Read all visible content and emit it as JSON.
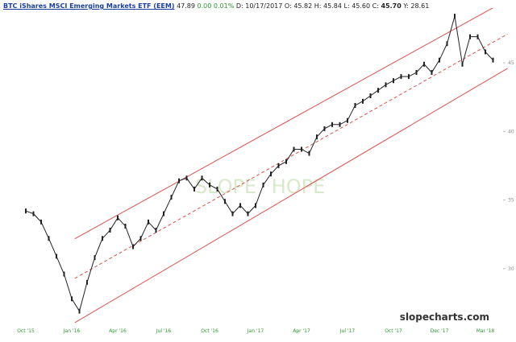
{
  "chart_data": {
    "type": "line",
    "header": {
      "title": "BTC iShares MSCI Emerging Markets ETF (EEM)",
      "last": "47.89",
      "change": "0.00",
      "change_pct": "0.01%",
      "quote": [
        {
          "label": "D:",
          "value": "10/17/2017"
        },
        {
          "label": "O:",
          "value": "45.82"
        },
        {
          "label": "H:",
          "value": "45.84"
        },
        {
          "label": "L:",
          "value": "45.60"
        },
        {
          "label": "C:",
          "value": "45.70"
        },
        {
          "label": "Y:",
          "value": "28.61"
        }
      ]
    },
    "watermark": [
      "SLOPE",
      "HOPE"
    ],
    "source": "slopecharts.com",
    "categories": [
      "Oct '15",
      null,
      null,
      null,
      null,
      null,
      "Jan '16",
      null,
      null,
      null,
      null,
      null,
      "Apr '16",
      null,
      null,
      null,
      null,
      null,
      "Jul '16",
      null,
      null,
      null,
      null,
      null,
      "Oct '16",
      null,
      null,
      null,
      null,
      null,
      "Jan '17",
      null,
      null,
      null,
      null,
      null,
      "Apr '17",
      null,
      null,
      null,
      null,
      null,
      "Jul '17",
      null,
      null,
      null,
      null,
      null,
      "Oct '17",
      null,
      null,
      null,
      null,
      null,
      "Dec '17",
      null,
      null,
      null,
      null,
      null,
      "Mar '18",
      null
    ],
    "values": [
      34.2,
      34.0,
      33.4,
      32.2,
      30.9,
      29.6,
      27.8,
      26.9,
      29.0,
      30.8,
      32.2,
      32.8,
      33.7,
      33.1,
      31.6,
      32.2,
      33.4,
      32.8,
      34.0,
      35.2,
      36.4,
      36.6,
      35.8,
      36.6,
      36.1,
      35.8,
      34.9,
      34.0,
      34.6,
      34.0,
      34.6,
      36.1,
      36.9,
      37.5,
      37.8,
      38.7,
      38.7,
      38.4,
      39.6,
      40.2,
      40.5,
      40.5,
      40.8,
      41.9,
      42.2,
      42.6,
      43.0,
      43.4,
      43.7,
      44.0,
      44.0,
      44.3,
      44.9,
      44.3,
      45.2,
      46.4,
      48.4,
      44.9,
      46.9,
      46.9,
      45.8,
      45.2
    ],
    "color": "#222222",
    "ylim": [
      26,
      48.7
    ],
    "yticks": [
      30,
      35,
      40,
      45
    ],
    "channel": [
      {
        "x": [
          6.4,
          62.9
        ],
        "values": [
          32.18,
          49.6
        ],
        "color": "#e05050",
        "dashed": false
      },
      {
        "x": [
          6.4,
          62.9
        ],
        "values": [
          29.29,
          47.1
        ],
        "color": "#e05050",
        "dashed": true
      },
      {
        "x": [
          6.4,
          62.9
        ],
        "values": [
          26.06,
          44.6
        ],
        "color": "#e05050",
        "dashed": false
      }
    ]
  }
}
